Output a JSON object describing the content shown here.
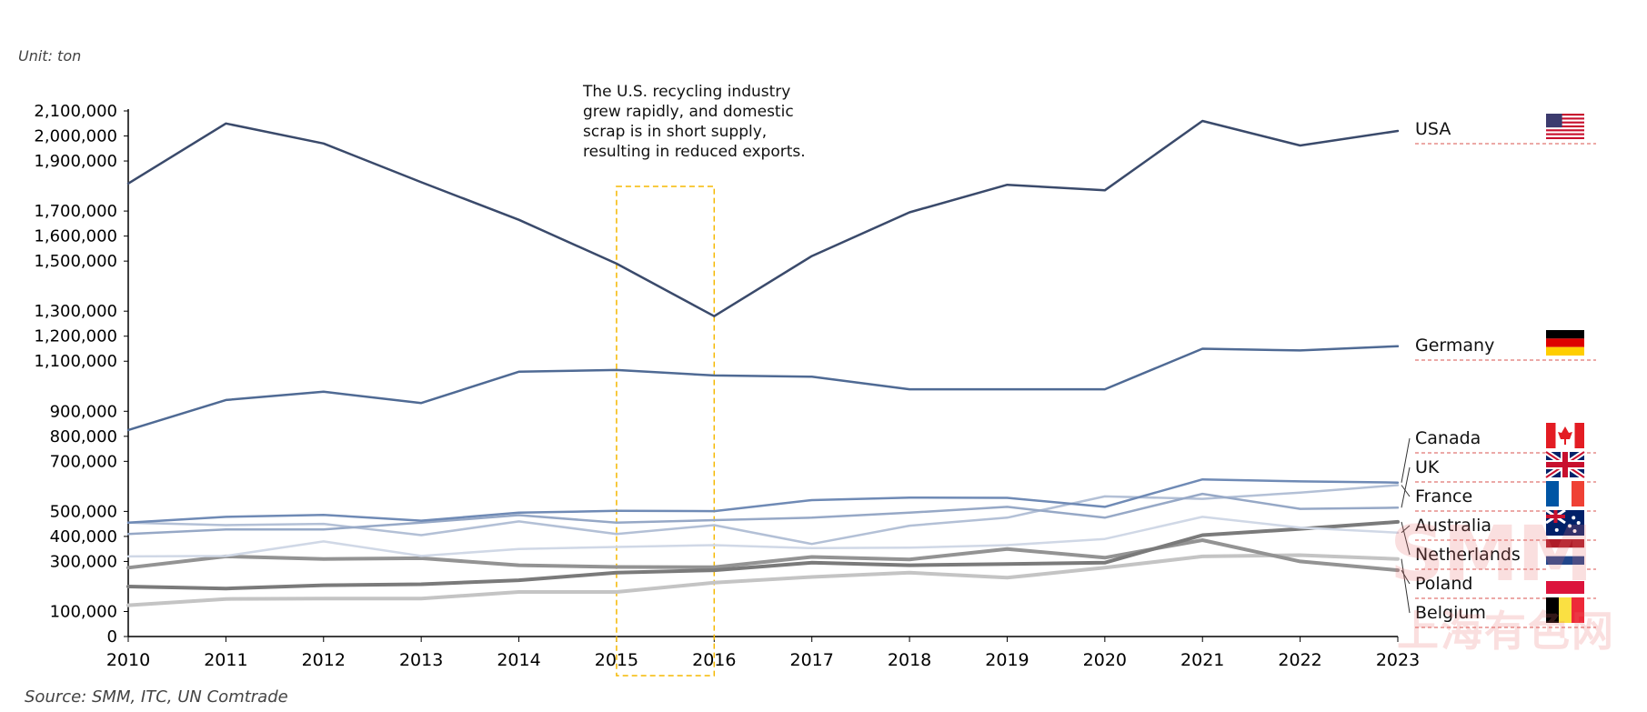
{
  "unit_label": "Unit: ton",
  "source_label": "Source: SMM, ITC, UN Comtrade",
  "annotation": {
    "lines": [
      "The U.S. recycling industry",
      "grew rapidly, and domestic",
      "scrap is in short supply,",
      "resulting in reduced exports."
    ],
    "highlight_range": [
      2015,
      2016
    ],
    "highlight_color": "#f5b800"
  },
  "watermark": {
    "top": "SMM",
    "bottom": "上海有色网"
  },
  "chart_data": {
    "type": "line",
    "x": [
      2010,
      2011,
      2012,
      2013,
      2014,
      2015,
      2016,
      2017,
      2018,
      2019,
      2020,
      2021,
      2022,
      2023
    ],
    "ylim": [
      0,
      2100000
    ],
    "yticks": [
      {
        "value": 0,
        "label": "0"
      },
      {
        "value": 100000,
        "label": "100,000"
      },
      {
        "value": 300000,
        "label": "300,000"
      },
      {
        "value": 400000,
        "label": "400,000"
      },
      {
        "value": 500000,
        "label": "500,000"
      },
      {
        "value": 700000,
        "label": "700,000"
      },
      {
        "value": 800000,
        "label": "800,000"
      },
      {
        "value": 900000,
        "label": "900,000"
      },
      {
        "value": 1100000,
        "label": "1,100,000"
      },
      {
        "value": 1200000,
        "label": "1,200,000"
      },
      {
        "value": 1300000,
        "label": "1,300,000"
      },
      {
        "value": 1500000,
        "label": "1,500,000"
      },
      {
        "value": 1600000,
        "label": "1,600,000"
      },
      {
        "value": 1700000,
        "label": "1,700,000"
      },
      {
        "value": 1900000,
        "label": "1,900,000"
      },
      {
        "value": 2000000,
        "label": "2,000,000"
      },
      {
        "value": 2100000,
        "label": "2,100,000"
      }
    ],
    "series": [
      {
        "name": "USA",
        "color": "#3a4a6b",
        "width": 2.5,
        "flag": "us-flag-icon",
        "values": [
          1810000,
          2050000,
          1970000,
          1815000,
          1665000,
          1490000,
          1280000,
          1520000,
          1695000,
          1805000,
          1783000,
          2060000,
          1962000,
          2020000
        ]
      },
      {
        "name": "Germany",
        "color": "#4f6a94",
        "width": 2.5,
        "flag": "germany-flag-icon",
        "values": [
          825000,
          945000,
          978000,
          933000,
          1058000,
          1065000,
          1043000,
          1038000,
          988000,
          988000,
          988000,
          1150000,
          1143000,
          1160000
        ]
      },
      {
        "name": "Canada",
        "color": "#6f8ab5",
        "width": 2.5,
        "flag": "canada-flag-icon",
        "values": [
          455000,
          478000,
          486000,
          463000,
          495000,
          502000,
          501000,
          545000,
          555000,
          554000,
          518000,
          628000,
          620000,
          615000
        ]
      },
      {
        "name": "UK",
        "color": "#96a8c6",
        "width": 2.5,
        "flag": "uk-flag-icon",
        "values": [
          410000,
          428000,
          428000,
          455000,
          485000,
          455000,
          465000,
          475000,
          495000,
          518000,
          475000,
          570000,
          510000,
          515000
        ]
      },
      {
        "name": "France",
        "color": "#b3c0d6",
        "width": 2.5,
        "flag": "france-flag-icon",
        "values": [
          455000,
          445000,
          450000,
          405000,
          460000,
          410000,
          445000,
          370000,
          443000,
          475000,
          560000,
          550000,
          575000,
          605000
        ]
      },
      {
        "name": "Australia",
        "color": "#d0d8e6",
        "width": 2.5,
        "flag": "australia-flag-icon",
        "values": [
          320000,
          322000,
          380000,
          322000,
          350000,
          358000,
          365000,
          353000,
          355000,
          365000,
          390000,
          478000,
          435000,
          415000
        ]
      },
      {
        "name": "Netherlands",
        "color": "#7a7a7a",
        "width": 4,
        "flag": "netherlands-flag-icon",
        "values": [
          200000,
          192000,
          205000,
          209000,
          225000,
          255000,
          265000,
          295000,
          285000,
          290000,
          295000,
          405000,
          430000,
          458000
        ]
      },
      {
        "name": "Poland",
        "color": "#939393",
        "width": 4,
        "flag": "poland-flag-icon",
        "values": [
          275000,
          320000,
          310000,
          313000,
          285000,
          278000,
          277000,
          318000,
          308000,
          350000,
          315000,
          385000,
          300000,
          265000
        ]
      },
      {
        "name": "Belgium",
        "color": "#c4c4c4",
        "width": 4,
        "flag": "belgium-flag-icon",
        "values": [
          125000,
          150000,
          152000,
          152000,
          178000,
          178000,
          215000,
          238000,
          255000,
          235000,
          275000,
          320000,
          325000,
          310000
        ]
      }
    ]
  }
}
